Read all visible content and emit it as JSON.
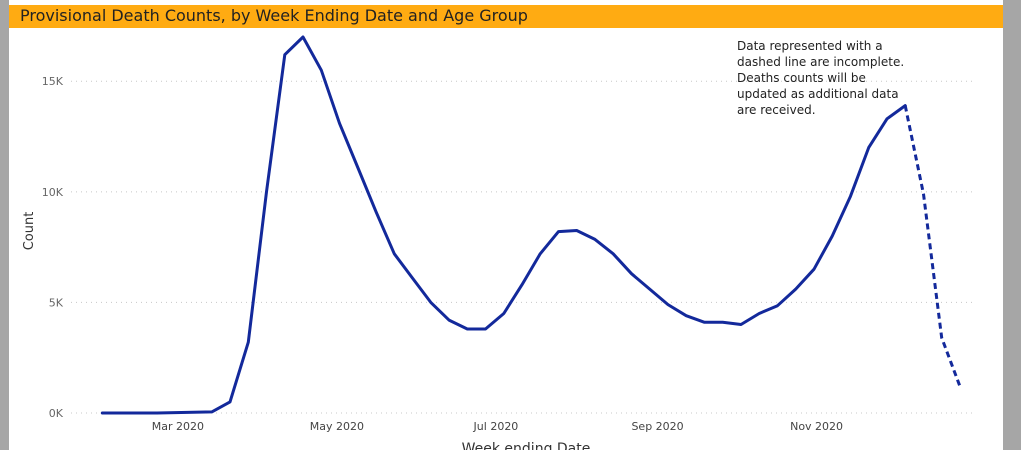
{
  "title": "Provisional Death Counts, by Week Ending Date and Age Group",
  "colors": {
    "title_bar": "#ffab12",
    "line": "#13299b",
    "side_border": "#a6a6a6"
  },
  "annotation": "Data represented with a dashed line are incomplete. Deaths counts will be updated as additional data are received.",
  "chart_data": {
    "type": "line",
    "title": "Provisional Death Counts, by Week Ending Date and Age Group",
    "xlabel": "Week ending Date",
    "ylabel": "Count",
    "x_ticks": [
      "2020-03-01",
      "2020-05-01",
      "2020-07-01",
      "2020-09-01",
      "2020-11-01"
    ],
    "x_tick_labels": [
      "Mar 2020",
      "May 2020",
      "Jul 2020",
      "Sep 2020",
      "Nov 2020"
    ],
    "y_ticks": [
      0,
      5000,
      10000,
      15000
    ],
    "y_tick_labels": [
      "0K",
      "5K",
      "10K",
      "15K"
    ],
    "xlim": [
      "2020-01-20",
      "2020-12-31"
    ],
    "ylim": [
      0,
      17000
    ],
    "grid": "horizontal dotted",
    "series": [
      {
        "x": [
          "2020-02-01",
          "2020-02-08",
          "2020-02-15",
          "2020-02-22",
          "2020-02-29",
          "2020-03-07",
          "2020-03-14",
          "2020-03-21",
          "2020-03-28",
          "2020-04-04",
          "2020-04-11",
          "2020-04-18",
          "2020-04-25",
          "2020-05-02",
          "2020-05-09",
          "2020-05-16",
          "2020-05-23",
          "2020-05-30",
          "2020-06-06",
          "2020-06-13",
          "2020-06-20",
          "2020-06-27",
          "2020-07-04",
          "2020-07-11",
          "2020-07-18",
          "2020-07-25",
          "2020-08-01",
          "2020-08-08",
          "2020-08-15",
          "2020-08-22",
          "2020-08-29",
          "2020-09-05",
          "2020-09-12",
          "2020-09-19",
          "2020-09-26",
          "2020-10-03",
          "2020-10-10",
          "2020-10-17",
          "2020-10-24",
          "2020-10-31",
          "2020-11-07",
          "2020-11-14",
          "2020-11-21",
          "2020-11-28",
          "2020-12-05",
          "2020-12-12",
          "2020-12-19",
          "2020-12-26"
        ],
        "y": [
          0,
          0,
          0,
          0,
          20,
          30,
          50,
          500,
          3200,
          10000,
          16200,
          17000,
          15500,
          13100,
          11100,
          9100,
          7200,
          6100,
          5000,
          4200,
          3800,
          3800,
          4500,
          5800,
          7200,
          8200,
          8250,
          7850,
          7200,
          6300,
          5600,
          4900,
          4400,
          4100,
          4100,
          4000,
          4500,
          4850,
          5600,
          6500,
          8000,
          9800,
          12000,
          13300,
          13900,
          9900,
          3400,
          1200
        ],
        "dashed_from": "2020-12-05"
      }
    ],
    "annotation": "Data represented with a dashed line are incomplete. Deaths counts will be updated as additional data are received."
  }
}
